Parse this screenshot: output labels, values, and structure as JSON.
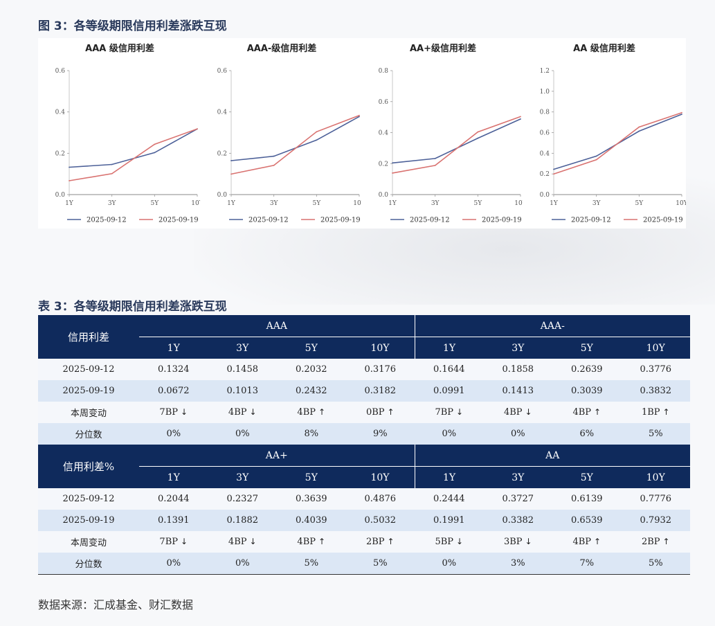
{
  "figure_title": "图 3：各等级期限信用利差涨跌互现",
  "table_title": "表 3：各等级期限信用利差涨跌互现",
  "source": "数据来源：汇成基金、财汇数据",
  "colors": {
    "series_1": "#4c6098",
    "series_2": "#d97270",
    "header_bg": "#0f2a5c"
  },
  "chart_data": [
    {
      "type": "line",
      "title": "AAA 级信用利差",
      "categories": [
        "1Y",
        "3Y",
        "5Y",
        "10Y"
      ],
      "ylim": [
        0,
        0.6
      ],
      "yticks": [
        0.0,
        0.2,
        0.4,
        0.6
      ],
      "ytick_labels": [
        "0.0",
        "0.2",
        "0.4",
        "0.6"
      ],
      "grid": false,
      "legend": "bottom",
      "series": [
        {
          "name": "2025-09-12",
          "values": [
            0.1324,
            0.1458,
            0.2032,
            0.3176
          ]
        },
        {
          "name": "2025-09-19",
          "values": [
            0.0672,
            0.1013,
            0.2432,
            0.3182
          ]
        }
      ]
    },
    {
      "type": "line",
      "title": "AAA-级信用利差",
      "categories": [
        "1Y",
        "3Y",
        "5Y",
        "10Y"
      ],
      "ylim": [
        0,
        0.6
      ],
      "yticks": [
        0.0,
        0.2,
        0.4,
        0.6
      ],
      "ytick_labels": [
        "0.0",
        "0.2",
        "0.4",
        "0.6"
      ],
      "grid": false,
      "legend": "bottom",
      "series": [
        {
          "name": "2025-09-12",
          "values": [
            0.1644,
            0.1858,
            0.2639,
            0.3776
          ]
        },
        {
          "name": "2025-09-19",
          "values": [
            0.0991,
            0.1413,
            0.3039,
            0.3832
          ]
        }
      ]
    },
    {
      "type": "line",
      "title": "AA+级信用利差",
      "categories": [
        "1Y",
        "3Y",
        "5Y",
        "10Y"
      ],
      "ylim": [
        0,
        0.8
      ],
      "yticks": [
        0.0,
        0.2,
        0.4,
        0.6,
        0.8
      ],
      "ytick_labels": [
        "0.0",
        "0.2",
        "0.4",
        "0.6",
        "0.8"
      ],
      "grid": false,
      "legend": "bottom",
      "series": [
        {
          "name": "2025-09-12",
          "values": [
            0.2044,
            0.2327,
            0.3639,
            0.4876
          ]
        },
        {
          "name": "2025-09-19",
          "values": [
            0.1391,
            0.1882,
            0.4039,
            0.5032
          ]
        }
      ]
    },
    {
      "type": "line",
      "title": "AA 级信用利差",
      "categories": [
        "1Y",
        "3Y",
        "5Y",
        "10Y"
      ],
      "ylim": [
        0,
        1.2
      ],
      "yticks": [
        0.0,
        0.2,
        0.4,
        0.6,
        0.8,
        1.0,
        1.2
      ],
      "ytick_labels": [
        "0.0",
        "0.2",
        "0.4",
        "0.6",
        "0.8",
        "1.0",
        "1.2"
      ],
      "grid": false,
      "legend": "bottom",
      "series": [
        {
          "name": "2025-09-12",
          "values": [
            0.2444,
            0.3727,
            0.6139,
            0.7776
          ]
        },
        {
          "name": "2025-09-19",
          "values": [
            0.1991,
            0.3382,
            0.6539,
            0.7932
          ]
        }
      ]
    }
  ],
  "table": {
    "blocks": [
      {
        "header_label": "信用利差",
        "groups": [
          "AAA",
          "AAA-"
        ],
        "terms": [
          "1Y",
          "3Y",
          "5Y",
          "10Y",
          "1Y",
          "3Y",
          "5Y",
          "10Y"
        ],
        "rows": [
          {
            "label": "2025-09-12",
            "cells": [
              "0.1324",
              "0.1458",
              "0.2032",
              "0.3176",
              "0.1644",
              "0.1858",
              "0.2639",
              "0.3776"
            ]
          },
          {
            "label": "2025-09-19",
            "cells": [
              "0.0672",
              "0.1013",
              "0.2432",
              "0.3182",
              "0.0991",
              "0.1413",
              "0.3039",
              "0.3832"
            ]
          },
          {
            "label": "本周变动",
            "cells": [
              "7BP",
              "4BP",
              "4BP",
              "0BP",
              "7BP",
              "4BP",
              "4BP",
              "1BP"
            ],
            "arrows": [
              "↓",
              "↓",
              "↑",
              "↑",
              "↓",
              "↓",
              "↑",
              "↑"
            ]
          },
          {
            "label": "分位数",
            "cells": [
              "0%",
              "0%",
              "8%",
              "9%",
              "0%",
              "0%",
              "6%",
              "5%"
            ]
          }
        ]
      },
      {
        "header_label": "信用利差%",
        "groups": [
          "AA+",
          "AA"
        ],
        "terms": [
          "1Y",
          "3Y",
          "5Y",
          "10Y",
          "1Y",
          "3Y",
          "5Y",
          "10Y"
        ],
        "rows": [
          {
            "label": "2025-09-12",
            "cells": [
              "0.2044",
              "0.2327",
              "0.3639",
              "0.4876",
              "0.2444",
              "0.3727",
              "0.6139",
              "0.7776"
            ]
          },
          {
            "label": "2025-09-19",
            "cells": [
              "0.1391",
              "0.1882",
              "0.4039",
              "0.5032",
              "0.1991",
              "0.3382",
              "0.6539",
              "0.7932"
            ]
          },
          {
            "label": "本周变动",
            "cells": [
              "7BP",
              "4BP",
              "4BP",
              "2BP",
              "5BP",
              "3BP",
              "4BP",
              "2BP"
            ],
            "arrows": [
              "↓",
              "↓",
              "↑",
              "↑",
              "↓",
              "↓",
              "↑",
              "↑"
            ]
          },
          {
            "label": "分位数",
            "cells": [
              "0%",
              "0%",
              "5%",
              "5%",
              "0%",
              "3%",
              "7%",
              "5%"
            ]
          }
        ]
      }
    ]
  }
}
